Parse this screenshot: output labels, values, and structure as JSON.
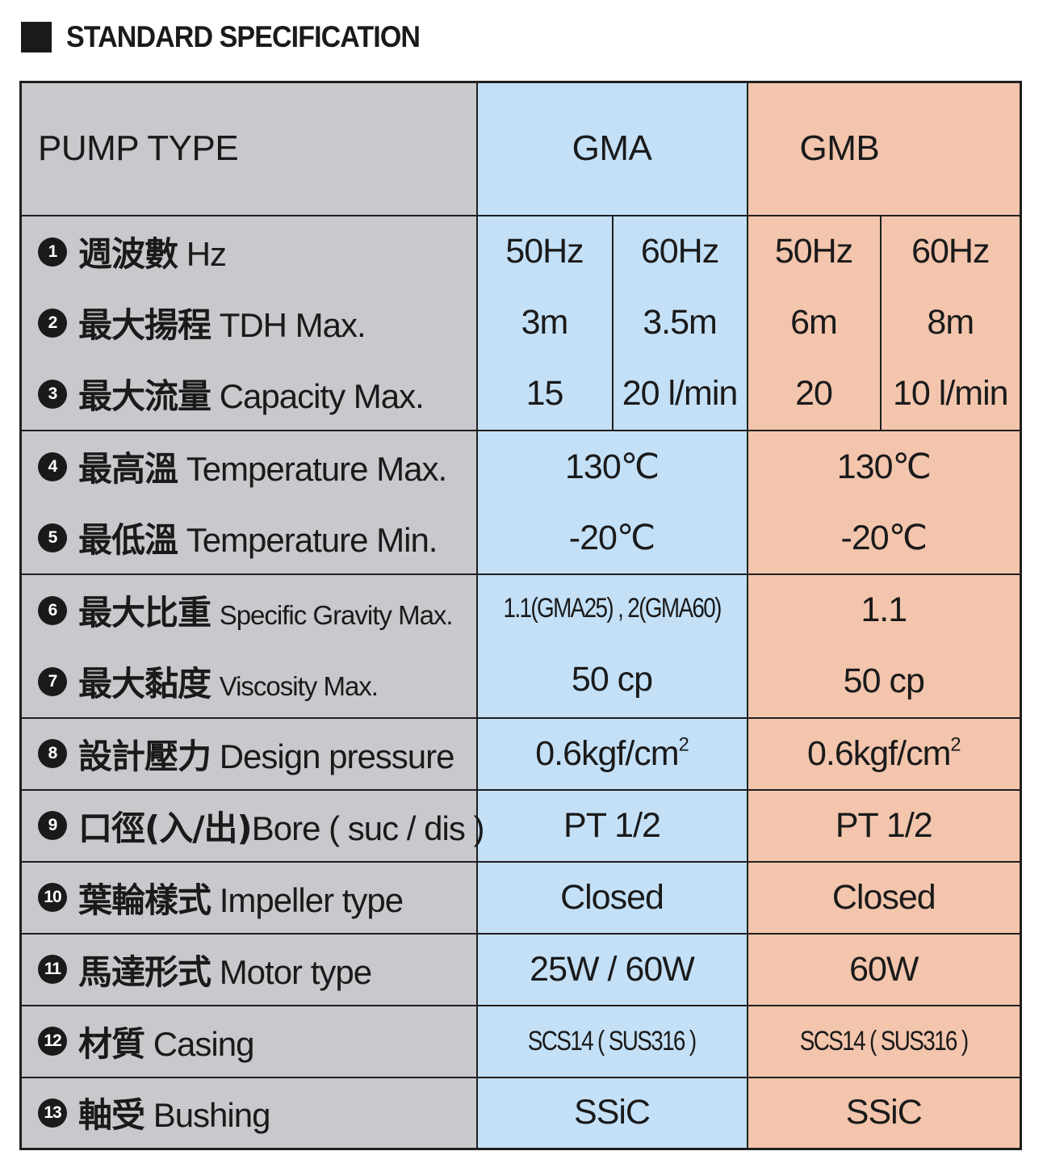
{
  "header": {
    "title": "STANDARD SPECIFICATION"
  },
  "columns": {
    "pump_type": "PUMP TYPE",
    "gma": "GMA",
    "gmb": "GMB"
  },
  "rows": {
    "hz": {
      "num": "1",
      "cn": "週波數",
      "en": "Hz",
      "gma_50": "50Hz",
      "gma_60": "60Hz",
      "gmb_50": "50Hz",
      "gmb_60": "60Hz"
    },
    "tdh": {
      "num": "2",
      "cn": "最大揚程",
      "en": "TDH Max.",
      "gma_50": "3m",
      "gma_60": "3.5m",
      "gmb_50": "6m",
      "gmb_60": "8m"
    },
    "capacity": {
      "num": "3",
      "cn": "最大流量",
      "en": "Capacity Max.",
      "gma_50": "15",
      "gma_60": "20 l/min",
      "gmb_50": "20",
      "gmb_60": "10 l/min"
    },
    "temp_max": {
      "num": "4",
      "cn": "最高溫",
      "en": "Temperature Max.",
      "gma": "130℃",
      "gmb": "130℃"
    },
    "temp_min": {
      "num": "5",
      "cn": "最低溫",
      "en": "Temperature Min.",
      "gma": "-20℃",
      "gmb": "-20℃"
    },
    "gravity": {
      "num": "6",
      "cn": "最大比重",
      "en": "Specific Gravity Max.",
      "gma": "1.1(GMA25) , 2(GMA60)",
      "gmb": "1.1"
    },
    "viscosity": {
      "num": "7",
      "cn": "最大黏度",
      "en": "Viscosity Max.",
      "gma": "50 cp",
      "gmb": "50 cp"
    },
    "pressure": {
      "num": "8",
      "cn": "設計壓力",
      "en": "Design pressure",
      "gma": "0.6kgf/cm",
      "gmb": "0.6kgf/cm",
      "sup": "2"
    },
    "bore": {
      "num": "9",
      "cn": "口徑(入/出)",
      "en": "Bore ( suc / dis )",
      "gma": "PT 1/2",
      "gmb": "PT 1/2"
    },
    "impeller": {
      "num": "10",
      "cn": "葉輪樣式",
      "en": "Impeller type",
      "gma": "Closed",
      "gmb": "Closed"
    },
    "motor": {
      "num": "11",
      "cn": "馬達形式",
      "en": "Motor type",
      "gma": "25W / 60W",
      "gmb": "60W"
    },
    "casing": {
      "num": "12",
      "cn": "材質",
      "en": "Casing",
      "gma": "SCS14 ( SUS316 )",
      "gmb": "SCS14 ( SUS316 )"
    },
    "bushing": {
      "num": "13",
      "cn": "軸受",
      "en": "Bushing",
      "gma": "SSiC",
      "gmb": "SSiC"
    }
  },
  "colors": {
    "label_bg": "#c9c8cc",
    "gma_bg": "#c3e0f7",
    "gmb_bg": "#f3c5ad",
    "border": "#1f1f1f"
  }
}
